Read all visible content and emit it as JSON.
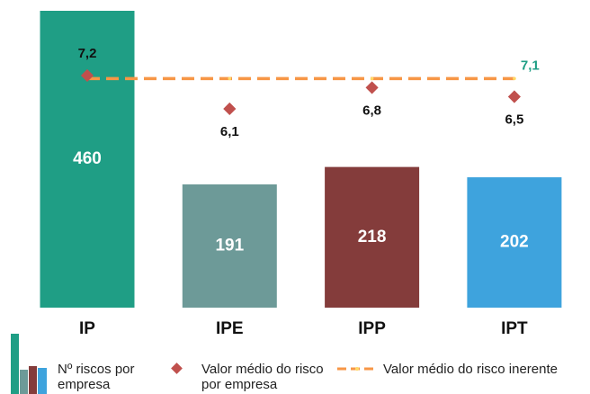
{
  "chart_data": {
    "type": "bar",
    "categories": [
      "IP",
      "IPE",
      "IPP",
      "IPT"
    ],
    "ylim": [
      0,
      460
    ],
    "y2lim": [
      5,
      8
    ],
    "series": [
      {
        "name": "Nº riscos por empresa",
        "type": "bar",
        "colors": [
          "#1f9e85",
          "#6d9a98",
          "#843c3b",
          "#3ea3dd"
        ],
        "values": [
          460,
          191,
          218,
          202
        ]
      },
      {
        "name": "Valor médio do risco por empresa",
        "type": "scatter",
        "axis": "y2",
        "color": "#c0504d",
        "values": [
          7.2,
          6.1,
          6.8,
          6.5
        ],
        "value_labels": [
          "7,2",
          "6,1",
          "6,8",
          "6,5"
        ]
      },
      {
        "name": "Valor médio do risco inerente",
        "type": "line",
        "axis": "y2",
        "color": "#f79646",
        "label_color": "#1f9e85",
        "values": [
          7.1,
          7.1,
          7.1,
          7.1
        ],
        "value_labels": [
          null,
          null,
          null,
          "7,1"
        ]
      }
    ],
    "legend": "bottom"
  }
}
